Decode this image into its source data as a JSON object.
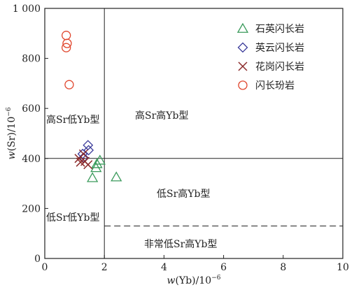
{
  "chart_data": {
    "type": "scatter",
    "xlabel_var": "w",
    "xlabel_rest": "(Yb)/10",
    "xlabel_exp": "−6",
    "ylabel_var": "w",
    "ylabel_rest": "(Sr)/10",
    "ylabel_exp": "−6",
    "xlim": [
      0,
      10
    ],
    "ylim": [
      0,
      1000
    ],
    "x_ticks": [
      0,
      2,
      4,
      6,
      8,
      10
    ],
    "x_tick_labels": [
      "0",
      "2",
      "4",
      "6",
      "8",
      "10"
    ],
    "y_ticks": [
      0,
      200,
      400,
      600,
      800,
      1000
    ],
    "y_tick_labels": [
      "0",
      "200",
      "400",
      "600",
      "800",
      "1 000"
    ],
    "boundaries": {
      "yb_vertical": 2,
      "sr_horizontal": 400,
      "sr_dashed": 130
    },
    "regions": {
      "high_sr_low_yb": "高Sr低Yb型",
      "high_sr_high_yb": "高Sr高Yb型",
      "low_sr_high_yb": "低Sr高Yb型",
      "low_sr_low_yb": "低Sr低Yb型",
      "very_low_sr_high_yb": "非常低Sr高Yb型"
    },
    "series": [
      {
        "name": "石英闪长岩",
        "marker": "triangle",
        "color": "#3a9a5b",
        "points": [
          [
            1.85,
            392
          ],
          [
            1.75,
            378
          ],
          [
            1.72,
            362
          ],
          [
            1.6,
            322
          ],
          [
            2.4,
            325
          ]
        ]
      },
      {
        "name": "英云闪长岩",
        "marker": "diamond",
        "color": "#3b3b9a",
        "points": [
          [
            1.45,
            453
          ],
          [
            1.47,
            433
          ],
          [
            1.27,
            418
          ],
          [
            1.3,
            403
          ]
        ]
      },
      {
        "name": "花岗闪长岩",
        "marker": "x",
        "color": "#8b2a2a",
        "points": [
          [
            1.15,
            400
          ],
          [
            1.3,
            418
          ],
          [
            1.35,
            388
          ],
          [
            1.45,
            375
          ],
          [
            1.2,
            385
          ]
        ]
      },
      {
        "name": "闪长玢岩",
        "marker": "circle",
        "color": "#e0452c",
        "points": [
          [
            0.72,
            892
          ],
          [
            0.75,
            860
          ],
          [
            0.72,
            843
          ],
          [
            0.82,
            695
          ]
        ]
      }
    ]
  }
}
